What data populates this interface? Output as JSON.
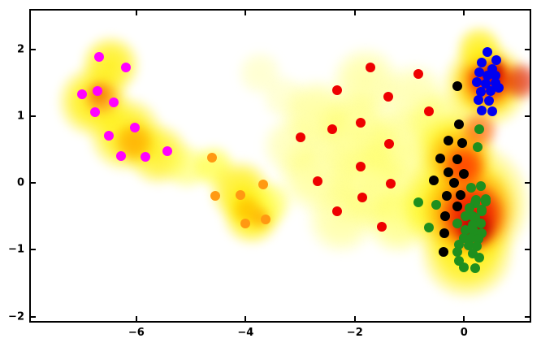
{
  "figure": {
    "background": "#ffffff",
    "axes_border_color": "#000000",
    "tick_color": "#000000",
    "tick_label_color": "#000000"
  },
  "chart_data": {
    "type": "scatter",
    "title": "",
    "xlabel": "",
    "ylabel": "",
    "xlim": [
      -7.96,
      1.23
    ],
    "ylim": [
      -2.09,
      2.61
    ],
    "xticks": [
      -6,
      -4,
      -2,
      0
    ],
    "xtick_labels": [
      "−6",
      "−4",
      "−2",
      "0"
    ],
    "yticks": [
      -2,
      -1,
      0,
      1,
      2
    ],
    "ytick_labels": [
      "−2",
      "−1",
      "0",
      "1",
      "2"
    ],
    "grid": false,
    "legend_position": "none",
    "marker_size_px": 12,
    "background_density": {
      "colormap": "white-yellow-orange-red (hot_r style kernel density)",
      "blobs": [
        [
          -6.48,
          1.77,
          38,
          "#ffee00",
          0.85
        ],
        [
          -6.78,
          1.22,
          46,
          "#ffee00",
          0.9
        ],
        [
          -6.19,
          0.74,
          48,
          "#ffee00",
          0.9
        ],
        [
          -5.59,
          0.43,
          40,
          "#ffee00",
          0.8
        ],
        [
          -5.07,
          0.25,
          30,
          "#ffff44",
          0.6
        ],
        [
          -6.63,
          1.28,
          24,
          "#ffa020",
          0.9
        ],
        [
          -6.04,
          0.61,
          26,
          "#ffaa00",
          0.85
        ],
        [
          -6.68,
          1.33,
          13,
          "#f57900",
          0.85
        ],
        [
          -4.59,
          0.25,
          28,
          "#ffff33",
          0.75
        ],
        [
          -4.1,
          -0.12,
          40,
          "#ffee00",
          0.85
        ],
        [
          -3.88,
          -0.48,
          38,
          "#ffee00",
          0.9
        ],
        [
          -3.58,
          -0.3,
          30,
          "#ffff44",
          0.7
        ],
        [
          -3.96,
          -0.4,
          20,
          "#ffc000",
          0.85
        ],
        [
          -3.73,
          -0.52,
          14,
          "#ffaa00",
          0.8
        ],
        [
          -2.69,
          1.04,
          45,
          "#ffff55",
          0.55
        ],
        [
          -1.8,
          1.53,
          45,
          "#ffff55",
          0.5
        ],
        [
          -0.91,
          1.28,
          45,
          "#ffff66",
          0.5
        ],
        [
          -1.95,
          0.74,
          55,
          "#ffff44",
          0.6
        ],
        [
          -1.06,
          0.49,
          55,
          "#ffff44",
          0.55
        ],
        [
          -2.69,
          0.13,
          50,
          "#ffff55",
          0.55
        ],
        [
          -1.72,
          -0.05,
          55,
          "#ffff44",
          0.6
        ],
        [
          -2.25,
          -0.54,
          45,
          "#ffff55",
          0.5
        ],
        [
          -1.2,
          -0.54,
          45,
          "#ffff44",
          0.6
        ],
        [
          -3.14,
          0.55,
          40,
          "#ffff66",
          0.45
        ],
        [
          -0.61,
          -0.3,
          45,
          "#ffff33",
          0.65
        ],
        [
          -0.46,
          0.92,
          40,
          "#ffff44",
          0.55
        ],
        [
          -3.73,
          1.65,
          30,
          "#ffff88",
          0.4
        ],
        [
          -3.29,
          1.28,
          30,
          "#ffff88",
          0.4
        ],
        [
          0.4,
          1.46,
          55,
          "#ffee00",
          0.95
        ],
        [
          0.43,
          1.53,
          40,
          "#ff8c00",
          0.95
        ],
        [
          0.46,
          1.55,
          28,
          "#ee1100",
          0.95
        ],
        [
          0.51,
          1.67,
          16,
          "#bb0000",
          0.9
        ],
        [
          0.28,
          2.01,
          30,
          "#ffee00",
          0.8
        ],
        [
          1.03,
          1.53,
          25,
          "#dd1100",
          0.7
        ],
        [
          0.06,
          -0.3,
          80,
          "#ffee00",
          0.95
        ],
        [
          0.06,
          -1.03,
          60,
          "#ffee00",
          0.9
        ],
        [
          -0.16,
          0.49,
          50,
          "#ffee00",
          0.85
        ],
        [
          0.1,
          -0.42,
          58,
          "#ff8c00",
          0.95
        ],
        [
          -0.09,
          0.37,
          40,
          "#ffa000",
          0.85
        ],
        [
          0.16,
          -0.48,
          42,
          "#ee1100",
          0.95
        ],
        [
          -0.01,
          0.25,
          28,
          "#ff3300",
          0.85
        ],
        [
          0.21,
          -0.69,
          24,
          "#aa0000",
          0.9
        ],
        [
          0.28,
          0.8,
          24,
          "#ff5500",
          0.7
        ]
      ]
    },
    "series": [
      {
        "name": "magenta-cluster",
        "color": "#ff00ff",
        "points": [
          [
            -6.68,
            1.89
          ],
          [
            -6.19,
            1.73
          ],
          [
            -7.0,
            1.33
          ],
          [
            -6.71,
            1.38
          ],
          [
            -6.41,
            1.21
          ],
          [
            -6.75,
            1.06
          ],
          [
            -6.02,
            0.83
          ],
          [
            -6.5,
            0.71
          ],
          [
            -6.28,
            0.41
          ],
          [
            -5.83,
            0.4
          ],
          [
            -5.43,
            0.48
          ]
        ]
      },
      {
        "name": "orange-cluster",
        "color": "#ff9912",
        "points": [
          [
            -4.62,
            0.38
          ],
          [
            -3.67,
            -0.02
          ],
          [
            -4.55,
            -0.19
          ],
          [
            -4.1,
            -0.18
          ],
          [
            -4.0,
            -0.6
          ],
          [
            -3.64,
            -0.54
          ]
        ]
      },
      {
        "name": "red-cluster",
        "color": "#ee0000",
        "points": [
          [
            -1.72,
            1.73
          ],
          [
            -0.83,
            1.64
          ],
          [
            -2.33,
            1.39
          ],
          [
            -1.38,
            1.29
          ],
          [
            -0.65,
            1.08
          ],
          [
            -1.9,
            0.91
          ],
          [
            -2.41,
            0.81
          ],
          [
            -3.0,
            0.69
          ],
          [
            -1.37,
            0.59
          ],
          [
            -1.9,
            0.25
          ],
          [
            -2.68,
            0.03
          ],
          [
            -1.35,
            -0.01
          ],
          [
            -1.86,
            -0.22
          ],
          [
            -2.32,
            -0.42
          ],
          [
            -1.5,
            -0.65
          ]
        ]
      },
      {
        "name": "black-cluster",
        "color": "#000000",
        "points": [
          [
            -0.12,
            1.45
          ],
          [
            -0.09,
            0.88
          ],
          [
            -0.28,
            0.64
          ],
          [
            -0.03,
            0.6
          ],
          [
            -0.43,
            0.37
          ],
          [
            -0.12,
            0.36
          ],
          [
            -0.28,
            0.16
          ],
          [
            -0.01,
            0.14
          ],
          [
            -0.55,
            0.04
          ],
          [
            -0.19,
            0.01
          ],
          [
            -0.31,
            -0.19
          ],
          [
            -0.06,
            -0.18
          ],
          [
            -0.13,
            -0.35
          ],
          [
            -0.34,
            -0.5
          ],
          [
            -0.36,
            -0.75
          ],
          [
            -0.37,
            -1.03
          ]
        ]
      },
      {
        "name": "blue-cluster",
        "color": "#0000f0",
        "points": [
          [
            0.43,
            1.96
          ],
          [
            0.59,
            1.84
          ],
          [
            0.33,
            1.81
          ],
          [
            0.52,
            1.71
          ],
          [
            0.28,
            1.66
          ],
          [
            0.43,
            1.61
          ],
          [
            0.58,
            1.61
          ],
          [
            0.24,
            1.51
          ],
          [
            0.4,
            1.49
          ],
          [
            0.57,
            1.5
          ],
          [
            0.64,
            1.43
          ],
          [
            0.31,
            1.37
          ],
          [
            0.48,
            1.38
          ],
          [
            0.27,
            1.25
          ],
          [
            0.45,
            1.23
          ],
          [
            0.33,
            1.09
          ],
          [
            0.51,
            1.08
          ]
        ]
      },
      {
        "name": "green-cluster",
        "color": "#1e8f1e",
        "points": [
          [
            0.28,
            0.81
          ],
          [
            0.25,
            0.54
          ],
          [
            0.13,
            -0.07
          ],
          [
            0.31,
            -0.05
          ],
          [
            -0.83,
            -0.29
          ],
          [
            -0.51,
            -0.32
          ],
          [
            0.21,
            -0.3
          ],
          [
            0.39,
            -0.27
          ],
          [
            0.22,
            -0.25
          ],
          [
            0.39,
            -0.24
          ],
          [
            0.1,
            -0.37
          ],
          [
            0.33,
            -0.4
          ],
          [
            0.33,
            -0.42
          ],
          [
            0.03,
            -0.5
          ],
          [
            0.16,
            -0.5
          ],
          [
            0.21,
            -0.52
          ],
          [
            -0.12,
            -0.6
          ],
          [
            -0.65,
            -0.66
          ],
          [
            0.16,
            -0.63
          ],
          [
            0.31,
            -0.61
          ],
          [
            0.03,
            -0.7
          ],
          [
            0.18,
            -0.72
          ],
          [
            0.33,
            -0.75
          ],
          [
            -0.01,
            -0.82
          ],
          [
            0.13,
            -0.82
          ],
          [
            0.27,
            -0.83
          ],
          [
            -0.09,
            -0.92
          ],
          [
            0.09,
            -0.93
          ],
          [
            0.24,
            -0.94
          ],
          [
            -0.13,
            -1.03
          ],
          [
            0.16,
            -1.05
          ],
          [
            0.28,
            -1.12
          ],
          [
            -0.1,
            -1.16
          ],
          [
            -0.01,
            -1.26
          ],
          [
            0.21,
            -1.27
          ]
        ]
      }
    ]
  }
}
